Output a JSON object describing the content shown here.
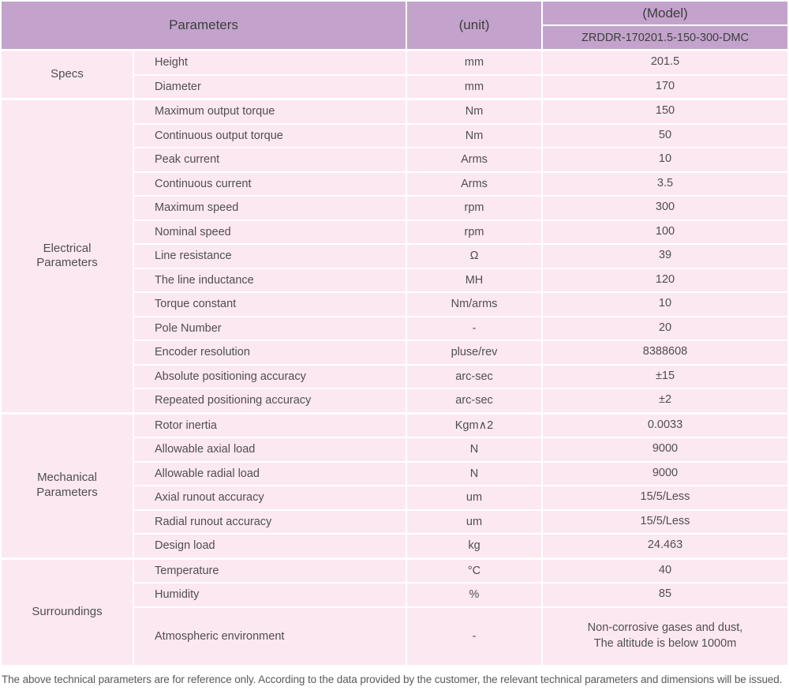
{
  "table": {
    "header": {
      "parameters_label": "Parameters",
      "unit_label": "(unit)",
      "model_label": "(Model)",
      "model_value": "ZRDDR-170201.5-150-300-DMC"
    },
    "sections": [
      {
        "group": "Specs",
        "rows": [
          {
            "param": "Height",
            "unit": "mm",
            "value": "201.5"
          },
          {
            "param": "Diameter",
            "unit": "mm",
            "value": "170"
          }
        ]
      },
      {
        "group": "Electrical\nParameters",
        "rows": [
          {
            "param": "Maximum output torque",
            "unit": "Nm",
            "value": "150"
          },
          {
            "param": "Continuous output torque",
            "unit": "Nm",
            "value": "50"
          },
          {
            "param": "Peak current",
            "unit": "Arms",
            "value": "10"
          },
          {
            "param": "Continuous current",
            "unit": "Arms",
            "value": "3.5"
          },
          {
            "param": "Maximum speed",
            "unit": "rpm",
            "value": "300"
          },
          {
            "param": "Nominal speed",
            "unit": "rpm",
            "value": "100"
          },
          {
            "param": "Line resistance",
            "unit": "Ω",
            "value": "39"
          },
          {
            "param": "The line inductance",
            "unit": "MH",
            "value": "120"
          },
          {
            "param": "Torque constant",
            "unit": "Nm/arms",
            "value": "10"
          },
          {
            "param": "Pole Number",
            "unit": "-",
            "value": "20"
          },
          {
            "param": "Encoder resolution",
            "unit": "pluse/rev",
            "value": "8388608"
          },
          {
            "param": "Absolute positioning accuracy",
            "unit": "arc-sec",
            "value": "±15"
          },
          {
            "param": "Repeated positioning accuracy",
            "unit": "arc-sec",
            "value": "±2"
          }
        ]
      },
      {
        "group": "Mechanical\nParameters",
        "rows": [
          {
            "param": "Rotor inertia",
            "unit": "Kgm∧2",
            "value": "0.0033"
          },
          {
            "param": "Allowable axial load",
            "unit": "N",
            "value": "9000"
          },
          {
            "param": "Allowable radial load",
            "unit": "N",
            "value": "9000"
          },
          {
            "param": "Axial runout accuracy",
            "unit": "um",
            "value": "15/5/Less"
          },
          {
            "param": "Radial runout accuracy",
            "unit": "um",
            "value": "15/5/Less"
          },
          {
            "param": "Design load",
            "unit": "kg",
            "value": "24.463"
          }
        ]
      },
      {
        "group": "Surroundings",
        "rows": [
          {
            "param": "Temperature",
            "unit": "°C",
            "value": "40"
          },
          {
            "param": "Humidity",
            "unit": "%",
            "value": "85"
          },
          {
            "param": "Atmospheric environment",
            "unit": "-",
            "value": "Non-corrosive gases and dust,\nThe altitude is below 1000m"
          }
        ]
      }
    ]
  },
  "footer": {
    "note": "The above technical parameters are for reference only. According to the data provided by the customer, the relevant technical parameters and dimensions will be issued."
  },
  "colors": {
    "header_purple": "#c3a3cb",
    "row_pink": "#fce8f1",
    "divider_white": "#ffffff",
    "text_gray": "#4f4f4f"
  }
}
